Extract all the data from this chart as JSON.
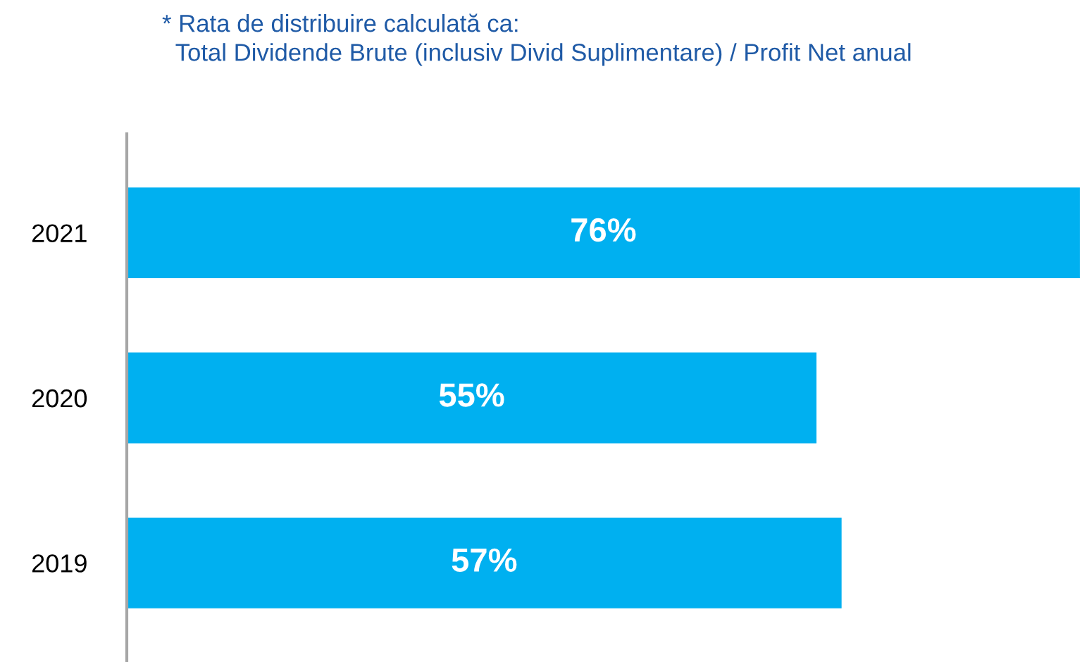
{
  "chart_data": {
    "type": "bar",
    "orientation": "horizontal",
    "categories": [
      "2021",
      "2020",
      "2019"
    ],
    "values": [
      76,
      55,
      57
    ],
    "value_labels": [
      "76%",
      "55%",
      "57%"
    ],
    "color": "#00b0f0",
    "grid": false,
    "legend": false,
    "tick_labels": "y",
    "annotations": [
      "* Rata de distribuire calculată ca:\n  Total Dividende Brute (inclusiv Divid Suplimentare) / Profit Net anual"
    ]
  }
}
